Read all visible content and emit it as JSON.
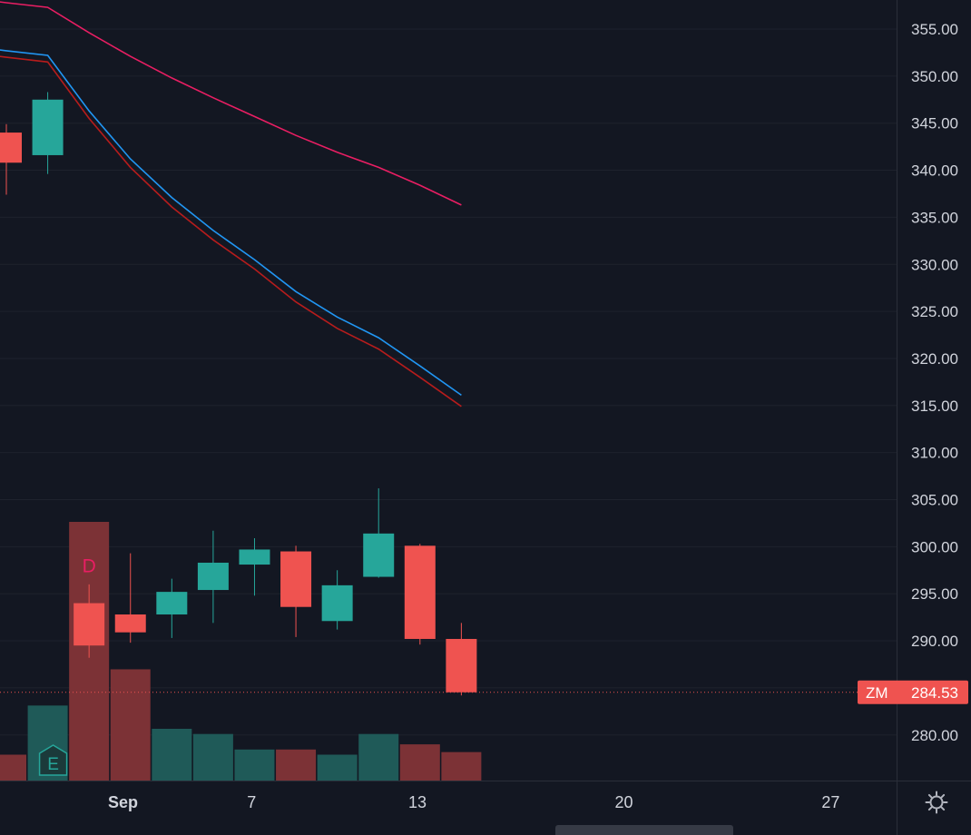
{
  "chart_data": {
    "type": "candlestick",
    "ticker": "ZM",
    "last_price": "284.53",
    "y_axis": {
      "range": [
        275.6,
        358.3
      ],
      "ticks": [
        "355.00",
        "350.00",
        "345.00",
        "340.00",
        "335.00",
        "330.00",
        "325.00",
        "320.00",
        "315.00",
        "310.00",
        "305.00",
        "300.00",
        "295.00",
        "290.00",
        "285.00",
        "280.00"
      ],
      "tick_values": [
        355,
        350,
        345,
        340,
        335,
        330,
        325,
        320,
        315,
        310,
        305,
        300,
        295,
        290,
        285,
        280
      ],
      "hidden_ticks": [
        285
      ]
    },
    "x_axis": {
      "labels": [
        {
          "text": "Sep",
          "bold": true,
          "slot": 2.82
        },
        {
          "text": "7",
          "bold": false,
          "slot": 5.93
        },
        {
          "text": "13",
          "bold": false,
          "slot": 9.94
        },
        {
          "text": "20",
          "bold": false,
          "slot": 14.93
        },
        {
          "text": "27",
          "bold": false,
          "slot": 19.93
        }
      ]
    },
    "candles": [
      {
        "slot": 0,
        "open": 344.0,
        "high": 344.9,
        "low": 337.4,
        "close": 340.8
      },
      {
        "slot": 1,
        "open": 341.6,
        "high": 348.3,
        "low": 339.6,
        "close": 347.5
      },
      {
        "slot": 2,
        "open": 294.0,
        "high": 296.0,
        "low": 288.2,
        "close": 289.5
      },
      {
        "slot": 3,
        "open": 292.8,
        "high": 299.3,
        "low": 289.8,
        "close": 290.9
      },
      {
        "slot": 4,
        "open": 292.8,
        "high": 296.6,
        "low": 290.3,
        "close": 295.2
      },
      {
        "slot": 5,
        "open": 295.4,
        "high": 301.7,
        "low": 291.9,
        "close": 298.3
      },
      {
        "slot": 6,
        "open": 298.1,
        "high": 300.9,
        "low": 294.8,
        "close": 299.7
      },
      {
        "slot": 7,
        "open": 299.5,
        "high": 300.1,
        "low": 290.4,
        "close": 293.6
      },
      {
        "slot": 8,
        "open": 292.1,
        "high": 297.5,
        "low": 291.2,
        "close": 295.9
      },
      {
        "slot": 9,
        "open": 296.8,
        "high": 306.2,
        "low": 296.7,
        "close": 301.4
      },
      {
        "slot": 10,
        "open": 300.1,
        "high": 300.3,
        "low": 289.6,
        "close": 290.2
      },
      {
        "slot": 11,
        "open": 290.2,
        "high": 291.9,
        "low": 284.2,
        "close": 284.53
      }
    ],
    "volume": [
      {
        "slot": 0,
        "level": 0.1,
        "direction": "down"
      },
      {
        "slot": 1,
        "level": 0.29,
        "direction": "up"
      },
      {
        "slot": 2,
        "level": 1.0,
        "direction": "down"
      },
      {
        "slot": 3,
        "level": 0.43,
        "direction": "down"
      },
      {
        "slot": 4,
        "level": 0.2,
        "direction": "up"
      },
      {
        "slot": 5,
        "level": 0.18,
        "direction": "up"
      },
      {
        "slot": 6,
        "level": 0.12,
        "direction": "up"
      },
      {
        "slot": 7,
        "level": 0.12,
        "direction": "down"
      },
      {
        "slot": 8,
        "level": 0.1,
        "direction": "up"
      },
      {
        "slot": 9,
        "level": 0.18,
        "direction": "up"
      },
      {
        "slot": 10,
        "level": 0.14,
        "direction": "down"
      },
      {
        "slot": 11,
        "level": 0.11,
        "direction": "down"
      }
    ],
    "moving_averages": [
      {
        "color": "#e91e63",
        "points": [
          [
            -1.1,
            358.4
          ],
          [
            0,
            357.8
          ],
          [
            1,
            357.3
          ],
          [
            2,
            354.6
          ],
          [
            3,
            352.1
          ],
          [
            4,
            349.8
          ],
          [
            5,
            347.7
          ],
          [
            6,
            345.7
          ],
          [
            7,
            343.7
          ],
          [
            8,
            341.9
          ],
          [
            9,
            340.3
          ],
          [
            10,
            338.4
          ],
          [
            11,
            336.3
          ]
        ]
      },
      {
        "color": "#2196f3",
        "points": [
          [
            -1.1,
            353.3
          ],
          [
            0,
            352.7
          ],
          [
            1,
            352.2
          ],
          [
            2,
            346.3
          ],
          [
            3,
            341.2
          ],
          [
            4,
            337.1
          ],
          [
            5,
            333.6
          ],
          [
            6,
            330.5
          ],
          [
            7,
            327.1
          ],
          [
            8,
            324.4
          ],
          [
            9,
            322.2
          ],
          [
            10,
            319.2
          ],
          [
            11,
            316.1
          ]
        ]
      },
      {
        "color": "#b71c1c",
        "points": [
          [
            -1.1,
            352.6
          ],
          [
            0,
            352.0
          ],
          [
            1,
            351.5
          ],
          [
            2,
            345.5
          ],
          [
            3,
            340.3
          ],
          [
            4,
            336.1
          ],
          [
            5,
            332.6
          ],
          [
            6,
            329.5
          ],
          [
            7,
            326.0
          ],
          [
            8,
            323.2
          ],
          [
            9,
            321.0
          ],
          [
            10,
            318.0
          ],
          [
            11,
            314.9
          ]
        ]
      }
    ],
    "markers": [
      {
        "text": "D",
        "slot": 2,
        "price": 300.1,
        "color": "#e91e63"
      },
      {
        "text": "E",
        "slot": 1,
        "color": "#26a69a"
      }
    ],
    "colors": {
      "up": "#26a69a",
      "down": "#ef5350",
      "volume_up": "#1f5a58",
      "volume_down": "#7c3236",
      "background": "#131722",
      "grid": "#1e222d",
      "text": "#d1d4dc"
    }
  }
}
